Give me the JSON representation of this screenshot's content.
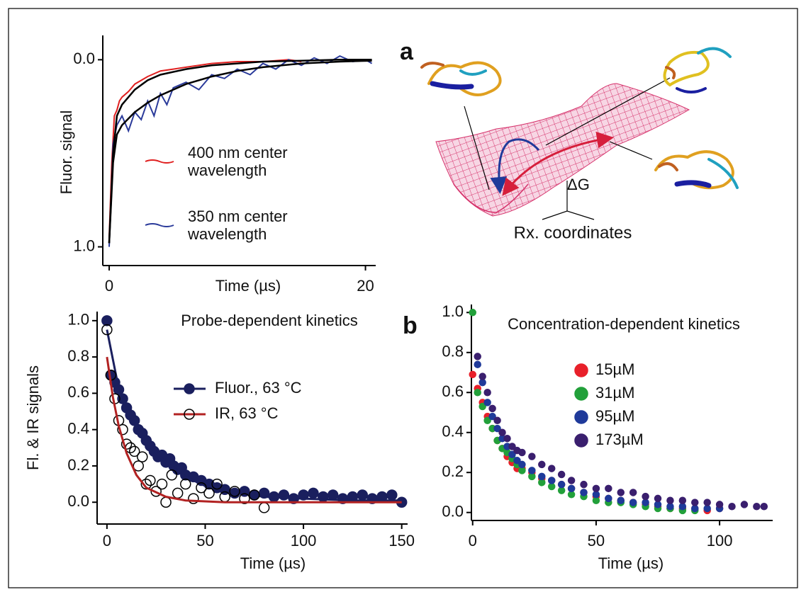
{
  "figure": {
    "panel_labels": [
      "a",
      "b"
    ],
    "energy_label": "ΔG",
    "coordinate_label": "Rx. coordinates"
  },
  "chart_data": [
    {
      "type": "line",
      "xlabel": "Time (µs)",
      "ylabel": "Fluor. signal",
      "xlim": [
        -0.5,
        20.8
      ],
      "ylim": [
        1.1,
        -0.13
      ],
      "xticks": [
        0,
        20
      ],
      "yticks": [
        {
          "value": 0,
          "label": "0.0"
        },
        {
          "value": 1,
          "label": "1.0"
        }
      ],
      "series": [
        {
          "name": "400 nm center wavelength",
          "color": "#e02020",
          "x": [
            0,
            0.2,
            0.4,
            0.6,
            0.8,
            1,
            1.5,
            2,
            3,
            4,
            5,
            6,
            7,
            8,
            10,
            12,
            14,
            15
          ],
          "values": [
            0.95,
            0.55,
            0.3,
            0.27,
            0.22,
            0.2,
            0.17,
            0.13,
            0.09,
            0.06,
            0.05,
            0.04,
            0.03,
            0.02,
            0.01,
            0.01,
            0.0,
            0.01
          ]
        },
        {
          "name": "350 nm center wavelength",
          "color": "#2a3a9a",
          "x": [
            0,
            0.3,
            0.6,
            1,
            1.5,
            2,
            2.5,
            3,
            3.5,
            4,
            4.5,
            5,
            6,
            7,
            8,
            9,
            10,
            11,
            12,
            13,
            14,
            15,
            16,
            17,
            18,
            19,
            20,
            20.5
          ],
          "values": [
            1.0,
            0.45,
            0.35,
            0.3,
            0.38,
            0.28,
            0.32,
            0.22,
            0.3,
            0.18,
            0.24,
            0.15,
            0.12,
            0.16,
            0.08,
            0.1,
            0.05,
            0.08,
            0.02,
            0.05,
            0.0,
            0.03,
            -0.01,
            0.02,
            -0.02,
            0.01,
            0.0,
            0.02
          ]
        }
      ],
      "fits": [
        {
          "color": "#000000",
          "x": [
            0,
            0.3,
            0.6,
            1,
            2,
            3,
            4,
            6,
            8,
            10,
            12,
            15,
            18,
            20.5
          ],
          "values": [
            0.98,
            0.5,
            0.3,
            0.24,
            0.16,
            0.11,
            0.08,
            0.05,
            0.03,
            0.02,
            0.01,
            0.005,
            0.0,
            0.0
          ]
        },
        {
          "color": "#000000",
          "x": [
            0,
            0.3,
            0.6,
            1,
            2,
            3,
            4,
            6,
            8,
            10,
            12,
            15,
            18,
            20.5
          ],
          "values": [
            0.98,
            0.55,
            0.4,
            0.35,
            0.28,
            0.23,
            0.19,
            0.13,
            0.09,
            0.06,
            0.04,
            0.02,
            0.01,
            0.005
          ]
        }
      ]
    },
    {
      "type": "scatter",
      "title": "Probe-dependent kinetics",
      "xlabel": "Time (µs)",
      "ylabel": "Fl. & IR signals",
      "xlim": [
        -5,
        153
      ],
      "ylim": [
        -0.12,
        1.05
      ],
      "xticks": [
        0,
        50,
        100,
        150
      ],
      "yticks": [
        {
          "value": 0,
          "label": "0.0"
        },
        {
          "value": 0.2,
          "label": "0.2"
        },
        {
          "value": 0.4,
          "label": "0.4"
        },
        {
          "value": 0.6,
          "label": "0.6"
        },
        {
          "value": 0.8,
          "label": "0.8"
        },
        {
          "value": 1,
          "label": "1.0"
        }
      ],
      "series": [
        {
          "name": "Fluor., 63 °C",
          "color": "#1a1f5e",
          "marker": "filled",
          "x": [
            0,
            2,
            4,
            6,
            8,
            10,
            12,
            14,
            16,
            18,
            20,
            22,
            24,
            26,
            28,
            30,
            32,
            34,
            36,
            38,
            40,
            44,
            48,
            52,
            56,
            60,
            65,
            70,
            75,
            80,
            85,
            90,
            95,
            100,
            105,
            110,
            115,
            120,
            125,
            130,
            135,
            140,
            145,
            150
          ],
          "values": [
            1.0,
            0.7,
            0.66,
            0.62,
            0.57,
            0.52,
            0.48,
            0.45,
            0.4,
            0.38,
            0.34,
            0.31,
            0.28,
            0.25,
            0.26,
            0.22,
            0.24,
            0.2,
            0.18,
            0.19,
            0.15,
            0.14,
            0.12,
            0.1,
            0.08,
            0.07,
            0.05,
            0.06,
            0.04,
            0.05,
            0.03,
            0.04,
            0.02,
            0.04,
            0.05,
            0.03,
            0.04,
            0.02,
            0.03,
            0.04,
            0.02,
            0.03,
            0.04,
            0.0
          ],
          "fit": {
            "x": [
              0,
              5,
              10,
              15,
              20,
              30,
              40,
              50,
              60,
              80,
              100,
              125,
              150
            ],
            "values": [
              0.95,
              0.68,
              0.52,
              0.42,
              0.33,
              0.22,
              0.14,
              0.09,
              0.06,
              0.03,
              0.02,
              0.01,
              0.01
            ]
          }
        },
        {
          "name": "IR, 63 °C",
          "color": "#b22222",
          "marker": "open",
          "x": [
            0,
            2,
            4,
            6,
            8,
            10,
            12,
            14,
            16,
            18,
            20,
            22,
            25,
            28,
            30,
            33,
            36,
            40,
            44,
            48,
            52,
            56,
            60,
            65,
            70,
            75,
            80
          ],
          "values": [
            0.95,
            0.7,
            0.57,
            0.45,
            0.4,
            0.32,
            0.3,
            0.28,
            0.2,
            0.25,
            0.1,
            0.12,
            0.06,
            0.1,
            0.0,
            0.15,
            0.05,
            0.1,
            0.02,
            0.08,
            0.05,
            0.1,
            0.03,
            0.06,
            0.02,
            0.04,
            -0.03
          ],
          "fit": {
            "x": [
              0,
              3,
              6,
              10,
              15,
              20,
              30,
              40,
              60,
              100,
              150
            ],
            "values": [
              0.8,
              0.58,
              0.42,
              0.27,
              0.15,
              0.08,
              0.03,
              0.01,
              0,
              0,
              0
            ]
          }
        }
      ]
    },
    {
      "type": "scatter",
      "title": "Concentration-dependent kinetics",
      "xlabel": "Time (µs)",
      "xlim": [
        -0.5,
        121.5
      ],
      "ylim": [
        -0.04,
        1.04
      ],
      "xticks": [
        0,
        50,
        100
      ],
      "yticks": [
        {
          "value": 0,
          "label": "0.0"
        },
        {
          "value": 0.2,
          "label": "0.2"
        },
        {
          "value": 0.4,
          "label": "0.4"
        },
        {
          "value": 0.6,
          "label": "0.6"
        },
        {
          "value": 0.8,
          "label": "0.8"
        },
        {
          "value": 1,
          "label": "1.0"
        }
      ],
      "series": [
        {
          "name": "15µM",
          "color": "#e8202a",
          "marker": "filled",
          "x": [
            0,
            2,
            4,
            6,
            8,
            10,
            12,
            14,
            16,
            18,
            20,
            24,
            28,
            32,
            36,
            40,
            45,
            50,
            55,
            60,
            65,
            70,
            75,
            80,
            85,
            90,
            95,
            100
          ],
          "values": [
            0.69,
            0.62,
            0.55,
            0.48,
            0.42,
            0.36,
            0.32,
            0.28,
            0.25,
            0.22,
            0.22,
            0.2,
            0.17,
            0.16,
            0.14,
            0.12,
            0.1,
            0.08,
            0.07,
            0.06,
            0.05,
            0.04,
            0.03,
            0.02,
            0.02,
            0.02,
            0.01,
            0.02
          ]
        },
        {
          "name": "31µM",
          "color": "#22a03a",
          "marker": "filled",
          "x": [
            0,
            2,
            4,
            6,
            8,
            10,
            12,
            14,
            16,
            18,
            20,
            24,
            28,
            32,
            36,
            40,
            45,
            50,
            55,
            60,
            65,
            70,
            75,
            80,
            85,
            90
          ],
          "values": [
            1.0,
            0.6,
            0.53,
            0.46,
            0.42,
            0.36,
            0.32,
            0.3,
            0.27,
            0.24,
            0.21,
            0.18,
            0.15,
            0.13,
            0.11,
            0.09,
            0.08,
            0.06,
            0.05,
            0.05,
            0.04,
            0.03,
            0.02,
            0.02,
            0.01,
            0.01
          ]
        },
        {
          "name": "95µM",
          "color": "#1f3a9a",
          "marker": "filled",
          "x": [
            2,
            4,
            6,
            8,
            10,
            12,
            14,
            16,
            18,
            20,
            24,
            28,
            32,
            36,
            40,
            45,
            50,
            55,
            60,
            65,
            70,
            75,
            80,
            85,
            90,
            95,
            100
          ],
          "values": [
            0.74,
            0.65,
            0.55,
            0.48,
            0.42,
            0.37,
            0.33,
            0.29,
            0.26,
            0.24,
            0.21,
            0.18,
            0.16,
            0.14,
            0.12,
            0.1,
            0.09,
            0.07,
            0.06,
            0.05,
            0.05,
            0.04,
            0.03,
            0.03,
            0.02,
            0.02,
            0.02
          ]
        },
        {
          "name": "173µM",
          "color": "#3a1f6e",
          "marker": "filled",
          "x": [
            2,
            4,
            6,
            8,
            10,
            12,
            14,
            16,
            18,
            20,
            24,
            28,
            32,
            36,
            40,
            45,
            50,
            55,
            60,
            65,
            70,
            75,
            80,
            85,
            90,
            95,
            100,
            105,
            110,
            115,
            118
          ],
          "values": [
            0.78,
            0.68,
            0.6,
            0.52,
            0.46,
            0.4,
            0.37,
            0.33,
            0.31,
            0.3,
            0.28,
            0.24,
            0.22,
            0.19,
            0.16,
            0.14,
            0.12,
            0.12,
            0.1,
            0.1,
            0.08,
            0.07,
            0.06,
            0.06,
            0.05,
            0.05,
            0.04,
            0.03,
            0.04,
            0.03,
            0.03
          ]
        }
      ]
    }
  ]
}
